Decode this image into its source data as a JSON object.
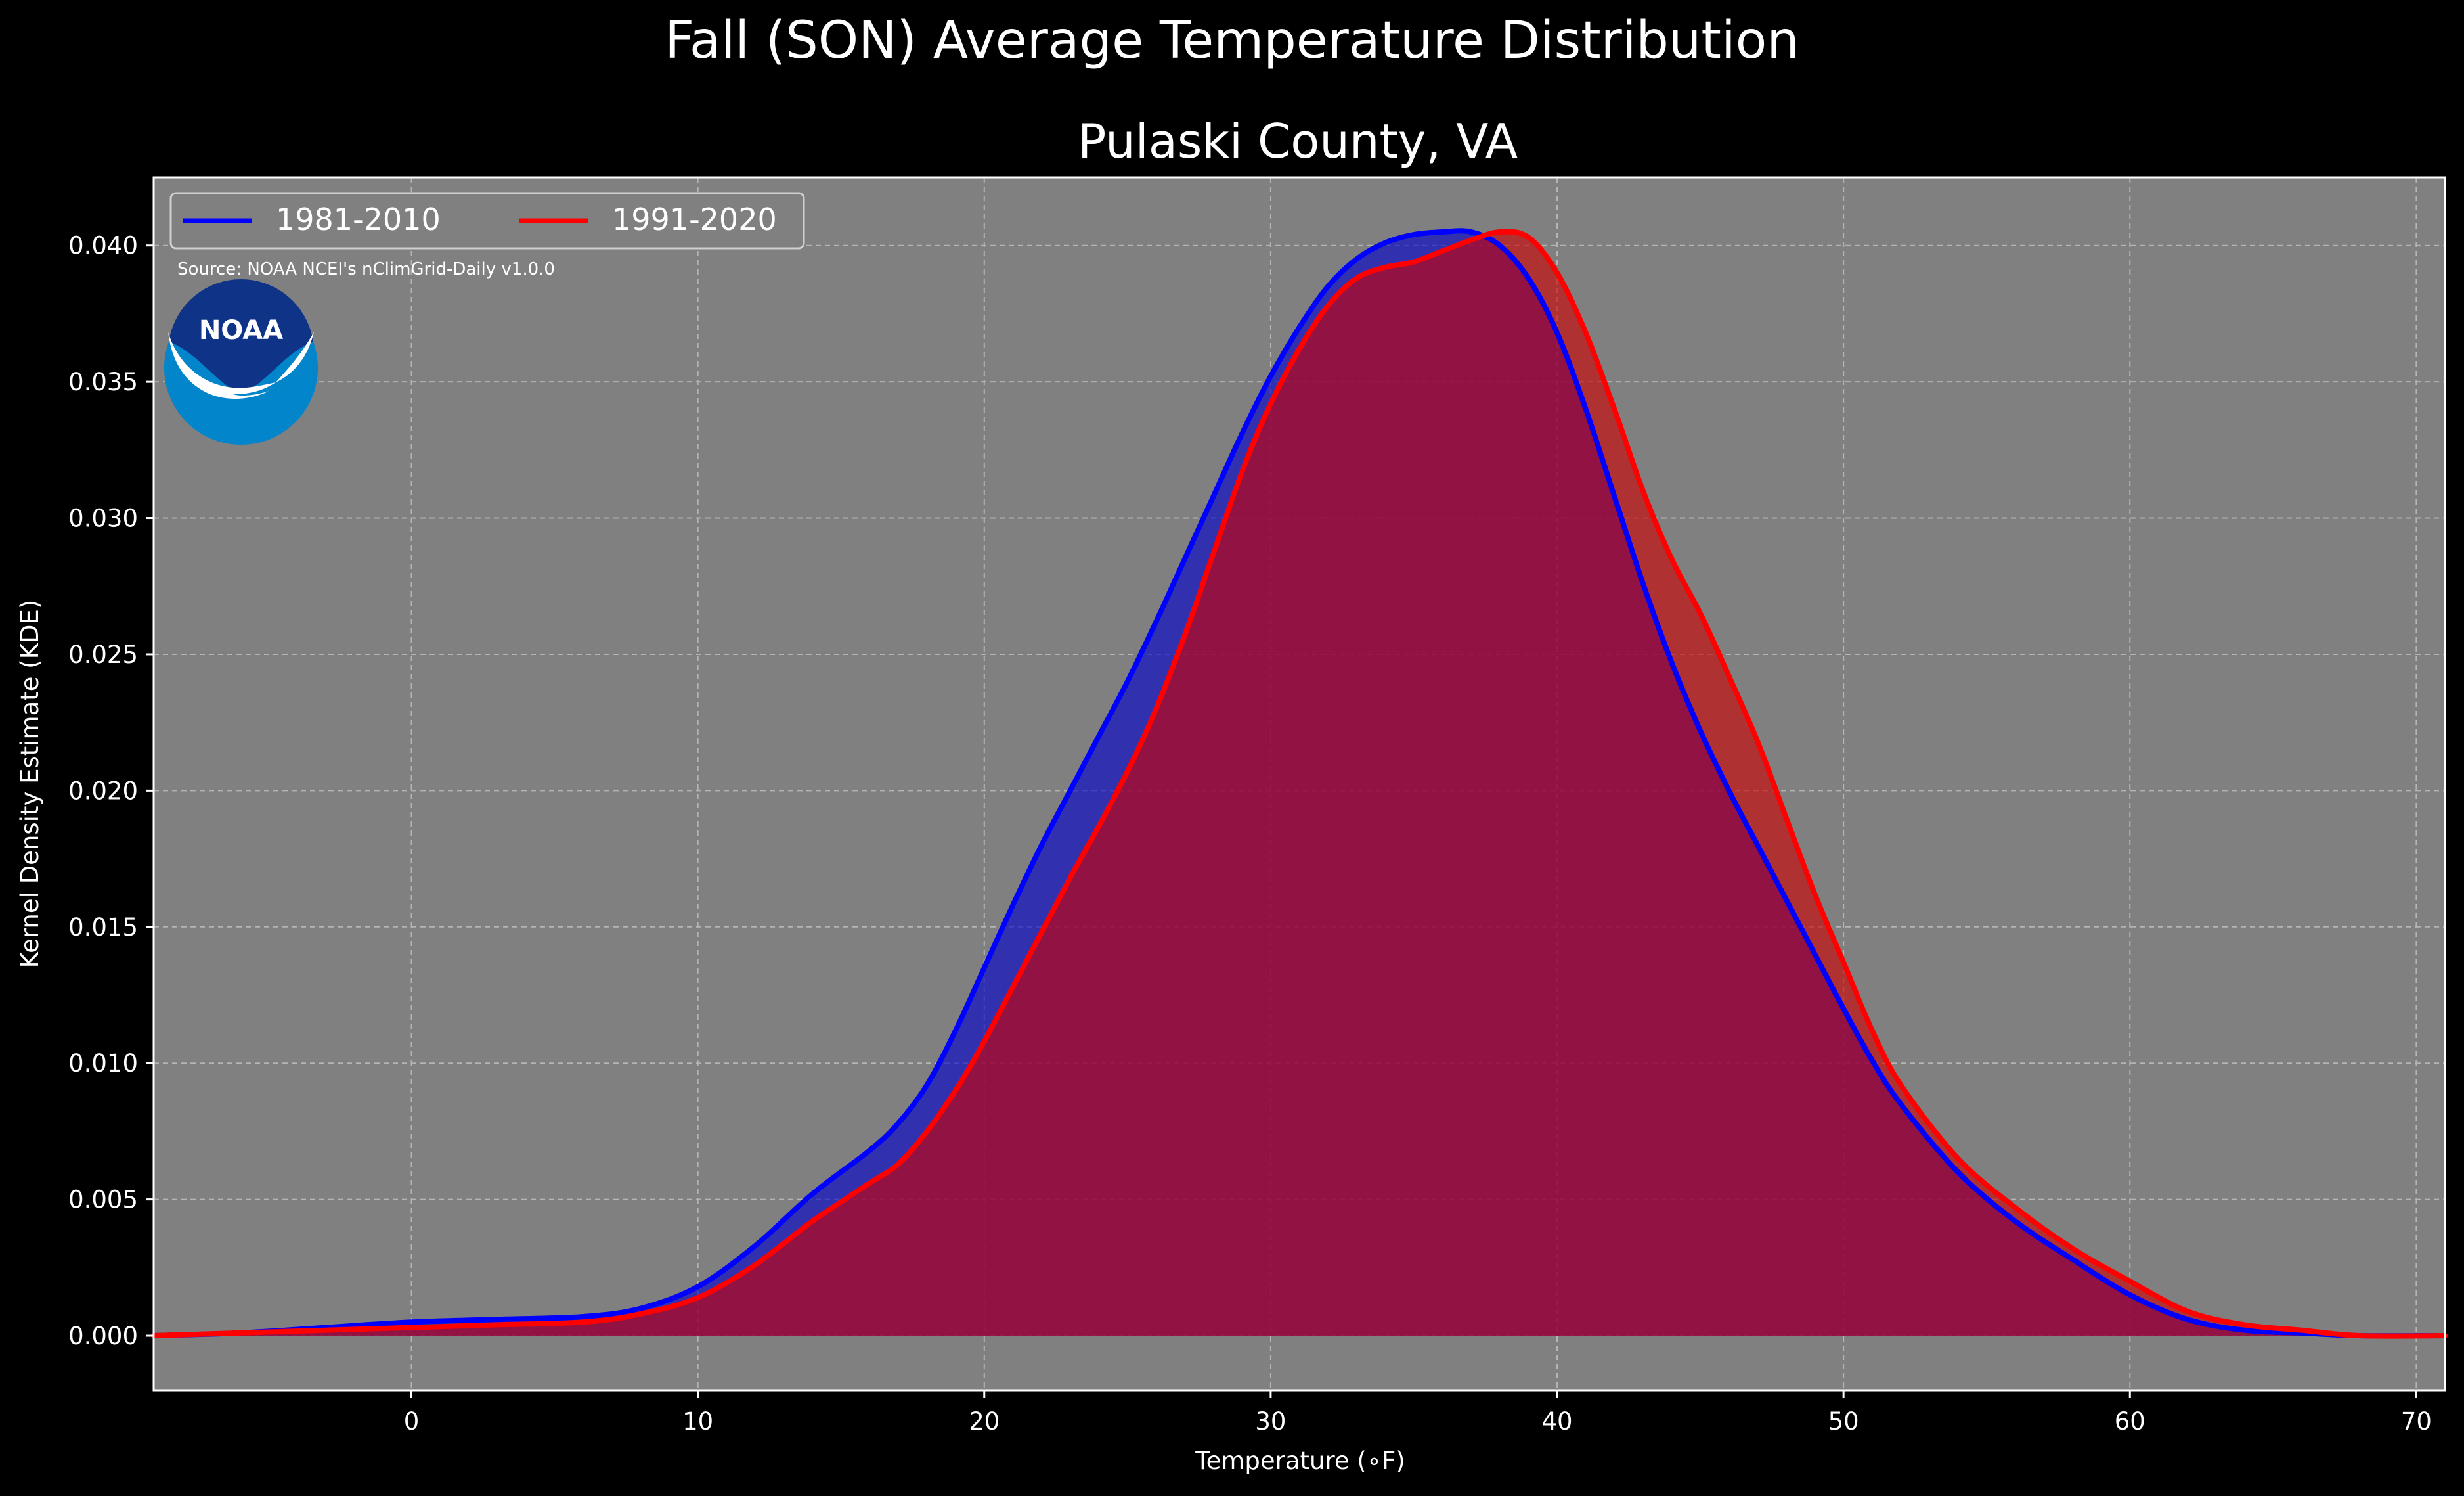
{
  "chart_data": {
    "type": "area",
    "suptitle": "Fall (SON) Average Temperature Distribution",
    "title": "Pulaski County, VA",
    "xlabel": "Temperature (∘F)",
    "ylabel": "Kernel Density Estimate (KDE)",
    "xlim": [
      -9,
      71
    ],
    "ylim": [
      -0.002,
      0.0425
    ],
    "xticks": [
      0,
      10,
      20,
      30,
      40,
      50,
      60,
      70
    ],
    "yticks": [
      0.0,
      0.005,
      0.01,
      0.015,
      0.02,
      0.025,
      0.03,
      0.035,
      0.04
    ],
    "ytick_labels": [
      "0.000",
      "0.005",
      "0.010",
      "0.015",
      "0.020",
      "0.025",
      "0.030",
      "0.035",
      "0.040"
    ],
    "grid": true,
    "legend_position": "top-left",
    "source_note": "Source: NOAA NCEI's nClimGrid-Daily v1.0.0",
    "logo_text": "NOAA",
    "background_color": "#000000",
    "plot_background_color": "#808080",
    "series": [
      {
        "name": "1981-2010",
        "color": "#0000ff",
        "fill_color": "#0000cd",
        "x": [
          -9,
          -6,
          -3,
          0,
          3,
          6,
          8,
          10,
          12,
          14,
          16,
          17,
          18,
          19,
          20,
          21,
          22,
          23,
          24,
          25,
          26,
          27,
          28,
          29,
          30,
          31,
          32,
          33,
          34,
          35,
          36,
          37,
          38,
          39,
          40,
          41,
          42,
          43,
          44,
          45,
          46,
          47,
          48,
          49,
          50,
          51,
          52,
          54,
          56,
          58,
          60,
          62,
          64,
          66,
          68,
          71
        ],
        "y": [
          0.0,
          0.0001,
          0.0003,
          0.0005,
          0.0006,
          0.0007,
          0.001,
          0.0018,
          0.0033,
          0.0052,
          0.0068,
          0.0078,
          0.0092,
          0.0112,
          0.0135,
          0.0158,
          0.018,
          0.02,
          0.022,
          0.024,
          0.0262,
          0.0285,
          0.0308,
          0.0331,
          0.0352,
          0.037,
          0.0385,
          0.0395,
          0.0401,
          0.0404,
          0.0405,
          0.0405,
          0.04,
          0.0388,
          0.0368,
          0.034,
          0.0308,
          0.0276,
          0.0247,
          0.0222,
          0.02,
          0.018,
          0.016,
          0.014,
          0.012,
          0.0101,
          0.0085,
          0.006,
          0.0042,
          0.0028,
          0.0015,
          0.0006,
          0.0002,
          0.0001,
          0.0,
          0.0
        ]
      },
      {
        "name": "1991-2020",
        "color": "#ff0000",
        "fill_color": "#cd0000",
        "x": [
          -9,
          -6,
          -3,
          0,
          3,
          6,
          8,
          10,
          12,
          14,
          16,
          17,
          18,
          19,
          20,
          21,
          22,
          23,
          24,
          25,
          26,
          27,
          28,
          29,
          30,
          31,
          32,
          33,
          34,
          35,
          36,
          37,
          38,
          39,
          40,
          41,
          42,
          43,
          44,
          45,
          46,
          47,
          48,
          49,
          50,
          51,
          52,
          54,
          56,
          58,
          60,
          62,
          64,
          66,
          68,
          71
        ],
        "y": [
          0.0,
          0.0001,
          0.0002,
          0.0003,
          0.0004,
          0.0005,
          0.0008,
          0.0014,
          0.0026,
          0.0042,
          0.0056,
          0.0063,
          0.0075,
          0.009,
          0.0108,
          0.0128,
          0.0148,
          0.0168,
          0.0187,
          0.0207,
          0.023,
          0.0257,
          0.0287,
          0.0317,
          0.0342,
          0.0362,
          0.0378,
          0.0388,
          0.0392,
          0.0394,
          0.0398,
          0.0402,
          0.0405,
          0.0403,
          0.039,
          0.0368,
          0.034,
          0.031,
          0.0285,
          0.0265,
          0.0242,
          0.0218,
          0.019,
          0.0162,
          0.0137,
          0.0112,
          0.0092,
          0.0065,
          0.0047,
          0.0032,
          0.002,
          0.0009,
          0.0004,
          0.0002,
          0.0,
          0.0
        ]
      }
    ]
  }
}
